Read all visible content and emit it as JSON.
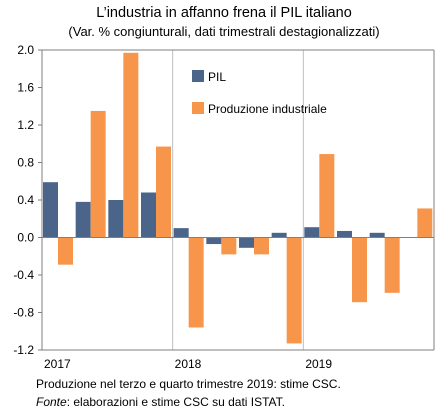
{
  "title": "L’industria in affanno frena il PIL italiano",
  "subtitle": "(Var. % congiunturali, dati trimestrali destagionalizzati)",
  "notes": {
    "line1": "Produzione  nel terzo  e quarto  trimestre 2019: stime CSC.",
    "source_label": "Fonte",
    "source_text": ": elaborazioni  e stime CSC su dati  ISTAT."
  },
  "colors": {
    "pil": "#4a6589",
    "produzione": "#f7964a",
    "axis": "#7f7f7f",
    "separator": "#bfbfbf"
  },
  "chart_data": {
    "type": "bar",
    "title": "L’industria in affanno frena il PIL italiano",
    "subtitle": "(Var. % congiunturali, dati trimestrali destagionalizzati)",
    "categories": [
      "2017 T1",
      "2017 T2",
      "2017 T3",
      "2017 T4",
      "2018 T1",
      "2018 T2",
      "2018 T3",
      "2018 T4",
      "2019 T1",
      "2019 T2",
      "2019 T3",
      "2019 T4"
    ],
    "year_labels": [
      "2017",
      "2018",
      "2019"
    ],
    "series": [
      {
        "name": "PIL",
        "values": [
          0.59,
          0.38,
          0.4,
          0.48,
          0.1,
          -0.07,
          -0.11,
          0.05,
          0.11,
          0.07,
          0.05,
          null
        ]
      },
      {
        "name": "Produzione  industriale",
        "values": [
          -0.29,
          1.35,
          1.97,
          0.97,
          -0.96,
          -0.18,
          -0.18,
          -1.13,
          0.89,
          -0.69,
          -0.59,
          0.31
        ]
      }
    ],
    "ylim": [
      -1.2,
      2.0
    ],
    "yticks": [
      -1.2,
      -0.8,
      -0.4,
      0.0,
      0.4,
      0.8,
      1.2,
      1.6,
      2.0
    ],
    "ytick_labels": [
      "-1.2",
      "-0.8",
      "-0.4",
      "0.0",
      "0.4",
      "0.8",
      "1.2",
      "1.6",
      "2.0"
    ],
    "xlabel": "",
    "ylabel": "",
    "grid": false,
    "legend_position": "top-right"
  }
}
